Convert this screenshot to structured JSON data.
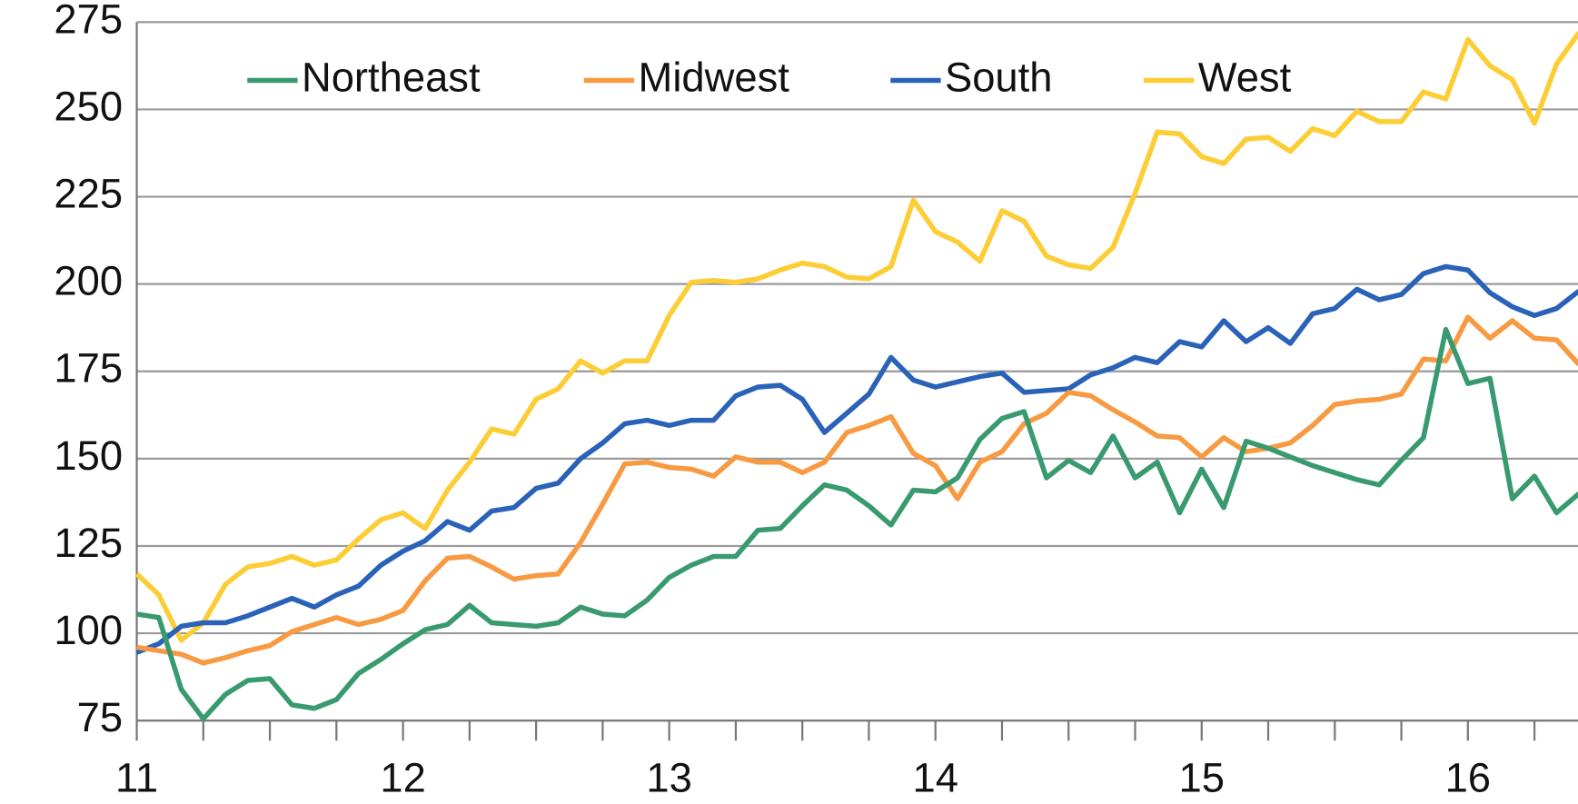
{
  "chart_data": {
    "type": "line",
    "x": [
      11,
      11.083,
      11.167,
      11.25,
      11.333,
      11.417,
      11.5,
      11.583,
      11.667,
      11.75,
      11.833,
      11.917,
      12,
      12.083,
      12.167,
      12.25,
      12.333,
      12.417,
      12.5,
      12.583,
      12.667,
      12.75,
      12.833,
      12.917,
      13,
      13.083,
      13.167,
      13.25,
      13.333,
      13.417,
      13.5,
      13.583,
      13.667,
      13.75,
      13.833,
      13.917,
      14,
      14.083,
      14.167,
      14.25,
      14.333,
      14.417,
      14.5,
      14.583,
      14.667,
      14.75,
      14.833,
      14.917,
      15,
      15.083,
      15.167,
      15.25,
      15.333,
      15.417,
      15.5,
      15.583,
      15.667,
      15.75,
      15.833,
      15.917,
      16,
      16.083,
      16.167,
      16.25,
      16.333,
      16.417
    ],
    "series": [
      {
        "name": "Northeast",
        "color": "#3a9a6f",
        "values": [
          105.5,
          104.5,
          84,
          75.5,
          82.5,
          86.5,
          87,
          79.5,
          78.5,
          81,
          88.5,
          92.5,
          97,
          101,
          102.5,
          108,
          103,
          102.5,
          102,
          103,
          107.5,
          105.5,
          105,
          109.5,
          116,
          119.5,
          122,
          122,
          129.5,
          130,
          136.5,
          142.5,
          141,
          136.5,
          131,
          141,
          140.5,
          144.5,
          155.5,
          161.5,
          163.5,
          144.5,
          149.5,
          146,
          156.5,
          144.5,
          149,
          134.5,
          147,
          136,
          155,
          153,
          150.5,
          148,
          146,
          144,
          142.5,
          149.5,
          156,
          187,
          171.5,
          173,
          138.5,
          145,
          134.5,
          140
        ]
      },
      {
        "name": "Midwest",
        "color": "#f79a42",
        "values": [
          96,
          95,
          94,
          91.5,
          93,
          95,
          96.5,
          100.5,
          102.5,
          104.5,
          102.5,
          104,
          106.5,
          115,
          121.5,
          122,
          119,
          115.5,
          116.5,
          117,
          126,
          137,
          148.5,
          149,
          147.5,
          147,
          145,
          150.5,
          149,
          149,
          146,
          149,
          157.5,
          159.5,
          162,
          151.5,
          148,
          138.5,
          149,
          152,
          160,
          163,
          169,
          168,
          164,
          160.5,
          156.5,
          156,
          150.5,
          156,
          152,
          153,
          154.5,
          159.5,
          165.5,
          166.5,
          167,
          168.5,
          178.5,
          178,
          190.5,
          184.5,
          189.5,
          184.5,
          184,
          177
        ]
      },
      {
        "name": "South",
        "color": "#2a62b8",
        "values": [
          94.5,
          97,
          102,
          103,
          103,
          105,
          107.5,
          110,
          107.5,
          111,
          113.5,
          119.5,
          123.5,
          126.5,
          132,
          129.5,
          135,
          136,
          141.5,
          143,
          150,
          154.5,
          160,
          161,
          159.5,
          161,
          161,
          168,
          170.5,
          171,
          167,
          157.5,
          163,
          168.5,
          179,
          172.5,
          170.5,
          172,
          173.5,
          174.5,
          169,
          169.5,
          170,
          174,
          176,
          179,
          177.5,
          183.5,
          182,
          189.5,
          183.5,
          187.5,
          183,
          191.5,
          193,
          198.5,
          195.5,
          197,
          203,
          205,
          204,
          197.5,
          193.5,
          191,
          193,
          198
        ]
      },
      {
        "name": "West",
        "color": "#fccd35",
        "values": [
          117,
          111,
          98,
          103,
          114,
          119,
          120,
          122,
          119.5,
          121,
          127,
          132.5,
          134.5,
          130,
          141,
          149,
          158.5,
          157,
          167,
          170,
          178,
          174.5,
          178,
          178,
          191,
          200.5,
          201,
          200.5,
          201.5,
          204,
          206,
          205,
          202,
          201.5,
          205,
          224,
          215,
          212,
          206.5,
          221,
          218,
          208,
          205.5,
          204.5,
          210.5,
          226,
          243.5,
          243,
          236.5,
          234.5,
          241.5,
          242,
          238,
          244.5,
          242.5,
          249.5,
          246.5,
          246.5,
          255,
          253,
          270,
          262.5,
          258.5,
          246,
          263,
          272
        ]
      }
    ],
    "xlim": [
      11,
      16.417
    ],
    "xticks": [
      11,
      12,
      13,
      14,
      15,
      16
    ],
    "xminorticks": [
      11.25,
      11.5,
      11.75,
      12.25,
      12.5,
      12.75,
      13.25,
      13.5,
      13.75,
      14.25,
      14.5,
      14.75,
      15.25,
      15.5,
      15.75,
      16.25
    ],
    "ylim": [
      75,
      275
    ],
    "yticks": [
      75,
      100,
      125,
      150,
      175,
      200,
      225,
      250,
      275
    ],
    "grid": true,
    "legend": "top"
  }
}
